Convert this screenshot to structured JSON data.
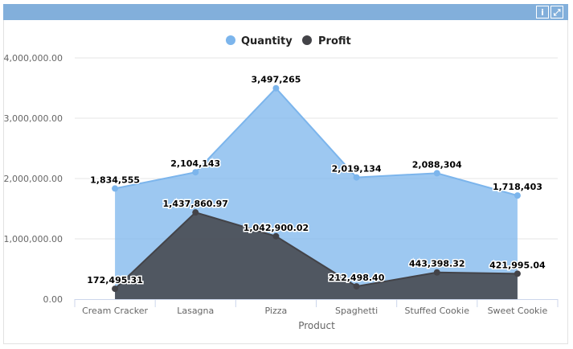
{
  "header": {
    "info_icon": "info-icon",
    "expand_icon": "expand-icon"
  },
  "chart_data": {
    "type": "area",
    "categories": [
      "Cream Cracker",
      "Lasagna",
      "Pizza",
      "Spaghetti",
      "Stuffed Cookie",
      "Sweet Cookie"
    ],
    "series": [
      {
        "name": "Quantity",
        "color": "#7cb5ec",
        "values": [
          1834555,
          2104143,
          3497265,
          2019134,
          2088304,
          1718403
        ],
        "labels": [
          "1,834,555",
          "2,104,143",
          "3,497,265",
          "2,019,134",
          "2,088,304",
          "1,718,403"
        ]
      },
      {
        "name": "Profit",
        "color": "#434348",
        "values": [
          172495.31,
          1437860.97,
          1042900.02,
          212498.4,
          443398.32,
          421995.04
        ],
        "labels": [
          "172,495.31",
          "1,437,860.97",
          "1,042,900.02",
          "212,498.40",
          "443,398.32",
          "421,995.04"
        ]
      }
    ],
    "xlabel": "Product",
    "ylabel": "",
    "ylim": [
      0,
      4000000
    ],
    "yticks": [
      0,
      1000000,
      2000000,
      3000000,
      4000000
    ],
    "ytick_labels": [
      "0.00",
      "1,000,000.00",
      "2,000,000.00",
      "3,000,000.00",
      "4,000,000.00"
    ],
    "grid": true,
    "legend": "top"
  }
}
